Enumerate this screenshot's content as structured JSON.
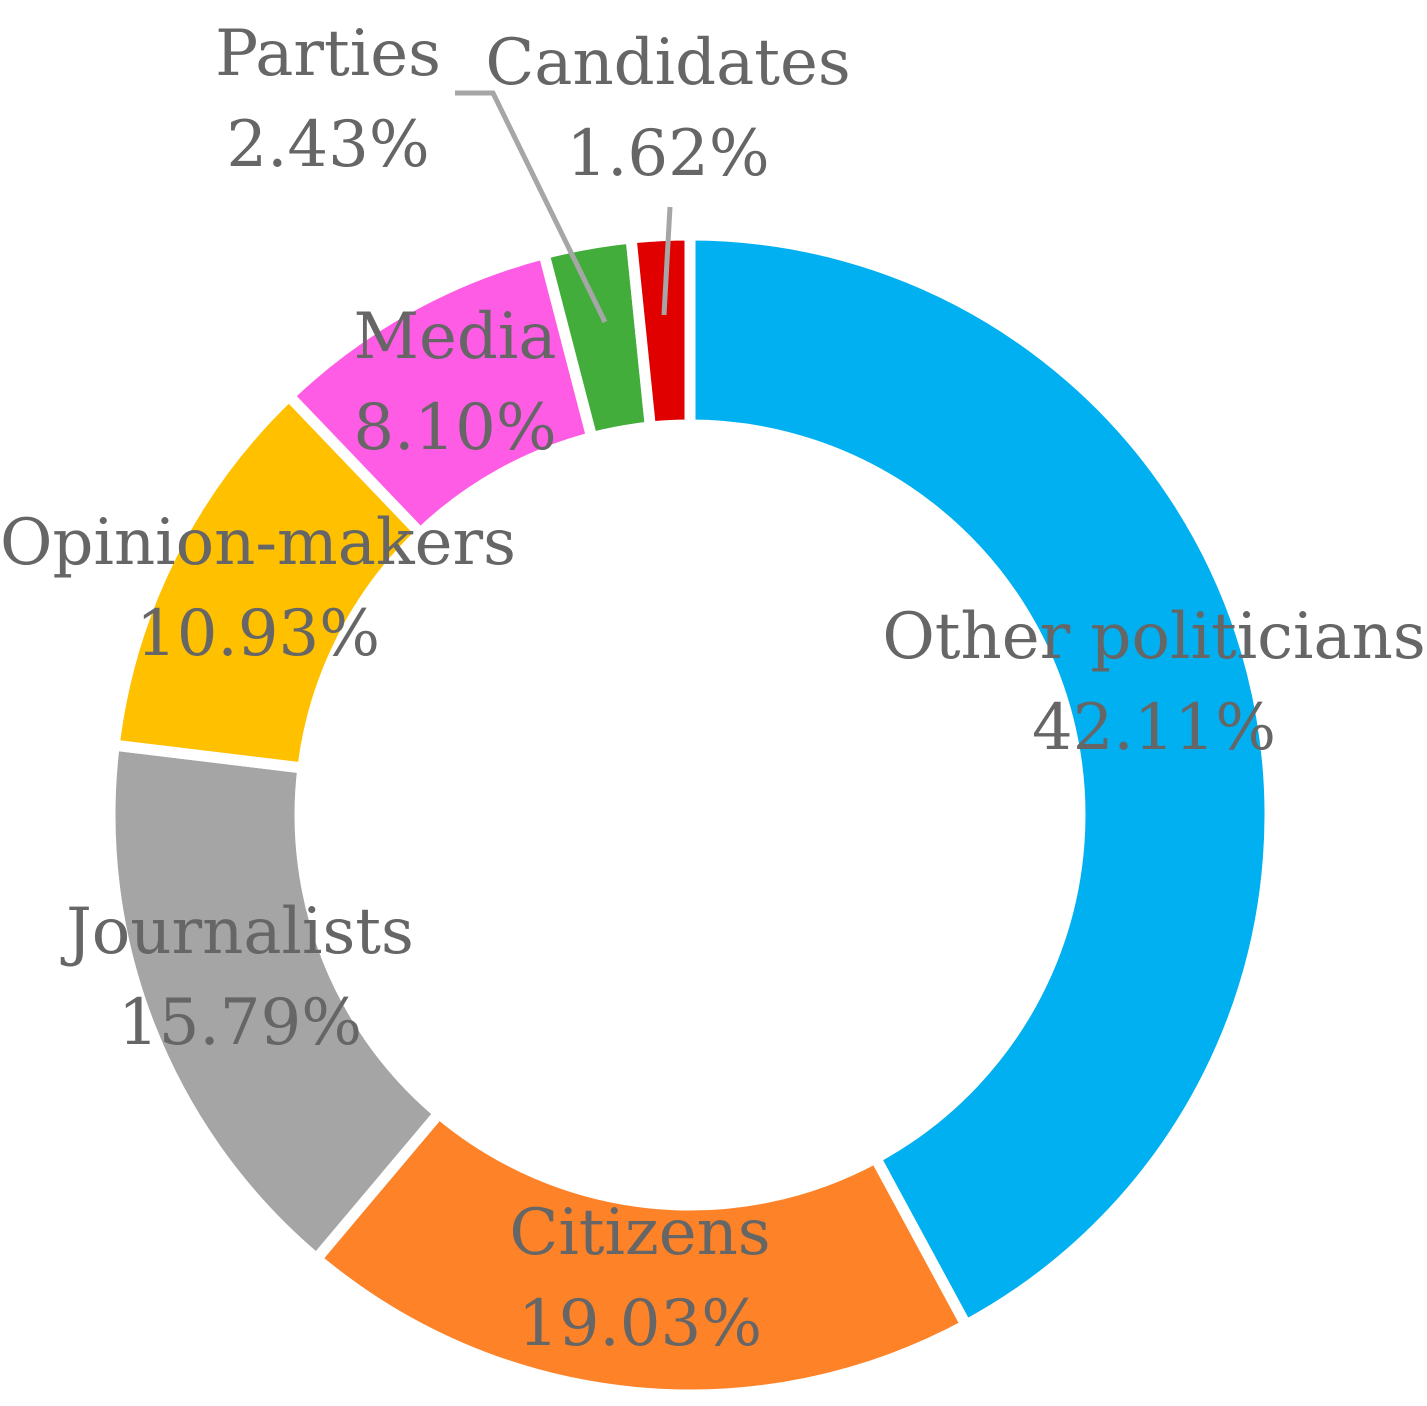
{
  "chart_data": {
    "type": "pie",
    "variant": "donut",
    "title": "",
    "slices": [
      {
        "name": "Other politicians",
        "value": 42.11,
        "label": "42.11%",
        "color": "#00b0f0"
      },
      {
        "name": "Citizens",
        "value": 19.03,
        "label": "19.03%",
        "color": "#fd8228"
      },
      {
        "name": "Journalists",
        "value": 15.79,
        "label": "15.79%",
        "color": "#a5a5a5"
      },
      {
        "name": "Opinion-makers",
        "value": 10.93,
        "label": "10.93%",
        "color": "#ffc000"
      },
      {
        "name": "Media",
        "value": 8.1,
        "label": "8.10%",
        "color": "#ff5ce6"
      },
      {
        "name": "Parties",
        "value": 2.43,
        "label": "2.43%",
        "color": "#43ad3c"
      },
      {
        "name": "Candidates",
        "value": 1.62,
        "label": "1.62%",
        "color": "#e00000"
      }
    ],
    "label_color": "#666666",
    "leader_color": "#a6a6a6",
    "legend": "none"
  }
}
